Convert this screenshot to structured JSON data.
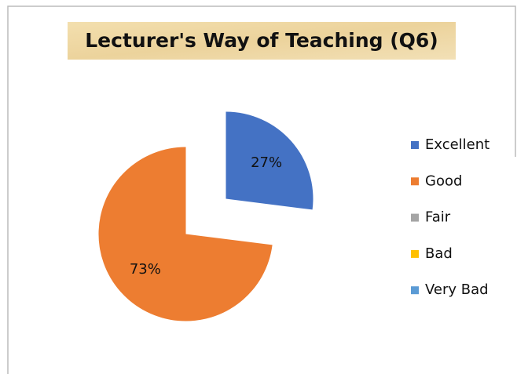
{
  "chart_data": {
    "type": "pie",
    "title": "Lecturer's Way of Teaching (Q6)",
    "categories": [
      "Excellent",
      "Good",
      "Fair",
      "Bad",
      "Very Bad"
    ],
    "values": [
      27,
      73,
      0,
      0,
      0
    ],
    "value_labels": [
      "27%",
      "73%",
      null,
      null,
      null
    ],
    "colors": [
      "#4472c4",
      "#ed7d31",
      "#a5a5a5",
      "#ffc000",
      "#5b9bd5"
    ],
    "exploded": true,
    "legend": "right"
  }
}
